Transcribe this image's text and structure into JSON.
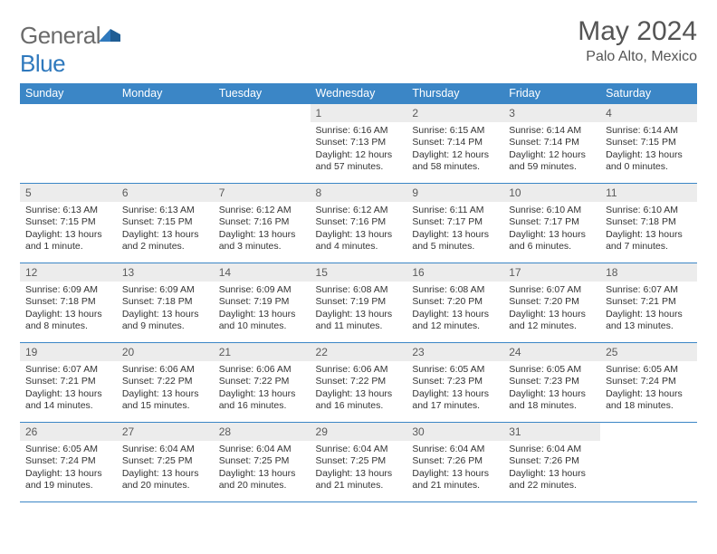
{
  "logo": {
    "word1": "General",
    "word2": "Blue"
  },
  "title": "May 2024",
  "location": "Palo Alto, Mexico",
  "colors": {
    "header_bg": "#3b86c6",
    "header_text": "#ffffff",
    "row_border": "#3b86c6",
    "daynum_bg": "#ececec",
    "daynum_text": "#5a5a5a",
    "body_text": "#333333",
    "logo_gray": "#6b6b6b",
    "logo_blue": "#2f79bd",
    "page_bg": "#ffffff"
  },
  "headers": [
    "Sunday",
    "Monday",
    "Tuesday",
    "Wednesday",
    "Thursday",
    "Friday",
    "Saturday"
  ],
  "weeks": [
    [
      null,
      null,
      null,
      {
        "n": "1",
        "sr": "6:16 AM",
        "ss": "7:13 PM",
        "dl": "12 hours and 57 minutes."
      },
      {
        "n": "2",
        "sr": "6:15 AM",
        "ss": "7:14 PM",
        "dl": "12 hours and 58 minutes."
      },
      {
        "n": "3",
        "sr": "6:14 AM",
        "ss": "7:14 PM",
        "dl": "12 hours and 59 minutes."
      },
      {
        "n": "4",
        "sr": "6:14 AM",
        "ss": "7:15 PM",
        "dl": "13 hours and 0 minutes."
      }
    ],
    [
      {
        "n": "5",
        "sr": "6:13 AM",
        "ss": "7:15 PM",
        "dl": "13 hours and 1 minute."
      },
      {
        "n": "6",
        "sr": "6:13 AM",
        "ss": "7:15 PM",
        "dl": "13 hours and 2 minutes."
      },
      {
        "n": "7",
        "sr": "6:12 AM",
        "ss": "7:16 PM",
        "dl": "13 hours and 3 minutes."
      },
      {
        "n": "8",
        "sr": "6:12 AM",
        "ss": "7:16 PM",
        "dl": "13 hours and 4 minutes."
      },
      {
        "n": "9",
        "sr": "6:11 AM",
        "ss": "7:17 PM",
        "dl": "13 hours and 5 minutes."
      },
      {
        "n": "10",
        "sr": "6:10 AM",
        "ss": "7:17 PM",
        "dl": "13 hours and 6 minutes."
      },
      {
        "n": "11",
        "sr": "6:10 AM",
        "ss": "7:18 PM",
        "dl": "13 hours and 7 minutes."
      }
    ],
    [
      {
        "n": "12",
        "sr": "6:09 AM",
        "ss": "7:18 PM",
        "dl": "13 hours and 8 minutes."
      },
      {
        "n": "13",
        "sr": "6:09 AM",
        "ss": "7:18 PM",
        "dl": "13 hours and 9 minutes."
      },
      {
        "n": "14",
        "sr": "6:09 AM",
        "ss": "7:19 PM",
        "dl": "13 hours and 10 minutes."
      },
      {
        "n": "15",
        "sr": "6:08 AM",
        "ss": "7:19 PM",
        "dl": "13 hours and 11 minutes."
      },
      {
        "n": "16",
        "sr": "6:08 AM",
        "ss": "7:20 PM",
        "dl": "13 hours and 12 minutes."
      },
      {
        "n": "17",
        "sr": "6:07 AM",
        "ss": "7:20 PM",
        "dl": "13 hours and 12 minutes."
      },
      {
        "n": "18",
        "sr": "6:07 AM",
        "ss": "7:21 PM",
        "dl": "13 hours and 13 minutes."
      }
    ],
    [
      {
        "n": "19",
        "sr": "6:07 AM",
        "ss": "7:21 PM",
        "dl": "13 hours and 14 minutes."
      },
      {
        "n": "20",
        "sr": "6:06 AM",
        "ss": "7:22 PM",
        "dl": "13 hours and 15 minutes."
      },
      {
        "n": "21",
        "sr": "6:06 AM",
        "ss": "7:22 PM",
        "dl": "13 hours and 16 minutes."
      },
      {
        "n": "22",
        "sr": "6:06 AM",
        "ss": "7:22 PM",
        "dl": "13 hours and 16 minutes."
      },
      {
        "n": "23",
        "sr": "6:05 AM",
        "ss": "7:23 PM",
        "dl": "13 hours and 17 minutes."
      },
      {
        "n": "24",
        "sr": "6:05 AM",
        "ss": "7:23 PM",
        "dl": "13 hours and 18 minutes."
      },
      {
        "n": "25",
        "sr": "6:05 AM",
        "ss": "7:24 PM",
        "dl": "13 hours and 18 minutes."
      }
    ],
    [
      {
        "n": "26",
        "sr": "6:05 AM",
        "ss": "7:24 PM",
        "dl": "13 hours and 19 minutes."
      },
      {
        "n": "27",
        "sr": "6:04 AM",
        "ss": "7:25 PM",
        "dl": "13 hours and 20 minutes."
      },
      {
        "n": "28",
        "sr": "6:04 AM",
        "ss": "7:25 PM",
        "dl": "13 hours and 20 minutes."
      },
      {
        "n": "29",
        "sr": "6:04 AM",
        "ss": "7:25 PM",
        "dl": "13 hours and 21 minutes."
      },
      {
        "n": "30",
        "sr": "6:04 AM",
        "ss": "7:26 PM",
        "dl": "13 hours and 21 minutes."
      },
      {
        "n": "31",
        "sr": "6:04 AM",
        "ss": "7:26 PM",
        "dl": "13 hours and 22 minutes."
      },
      null
    ]
  ],
  "labels": {
    "sunrise": "Sunrise:",
    "sunset": "Sunset:",
    "daylight": "Daylight:"
  }
}
